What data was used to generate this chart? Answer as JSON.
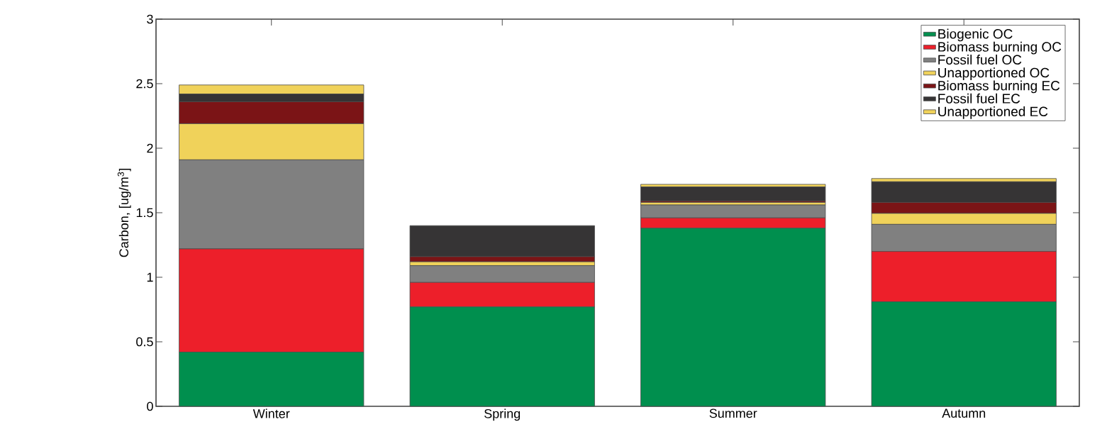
{
  "chart_data": {
    "type": "bar",
    "stacked": true,
    "ylabel": "Carbon, [ug/m$^{3}$]",
    "categories": [
      "Winter",
      "Spring",
      "Summer",
      "Autumn"
    ],
    "series": [
      {
        "name": "Biogenic OC",
        "color": "#008f4e",
        "values": [
          0.42,
          0.77,
          1.38,
          0.81
        ]
      },
      {
        "name": "Biomass burning OC",
        "color": "#ed1f2a",
        "values": [
          0.8,
          0.19,
          0.08,
          0.39
        ]
      },
      {
        "name": "Fossil fuel OC",
        "color": "#808080",
        "values": [
          0.69,
          0.13,
          0.1,
          0.21
        ]
      },
      {
        "name": "Unapportioned OC",
        "color": "#f0d25a",
        "values": [
          0.28,
          0.03,
          0.02,
          0.085
        ]
      },
      {
        "name": "Biomass burning EC",
        "color": "#7b1416",
        "values": [
          0.17,
          0.04,
          0.01,
          0.085
        ]
      },
      {
        "name": "Fossil fuel EC",
        "color": "#363435",
        "values": [
          0.06,
          0.24,
          0.11,
          0.16
        ]
      },
      {
        "name": "Unapportioned EC",
        "color": "#f0d25a",
        "values": [
          0.07,
          0,
          0.02,
          0.025
        ]
      }
    ],
    "ylim": [
      0,
      3
    ],
    "yticks": [
      0,
      0.5,
      1,
      1.5,
      2,
      2.5,
      3
    ],
    "legend": "top right",
    "grid": false
  }
}
